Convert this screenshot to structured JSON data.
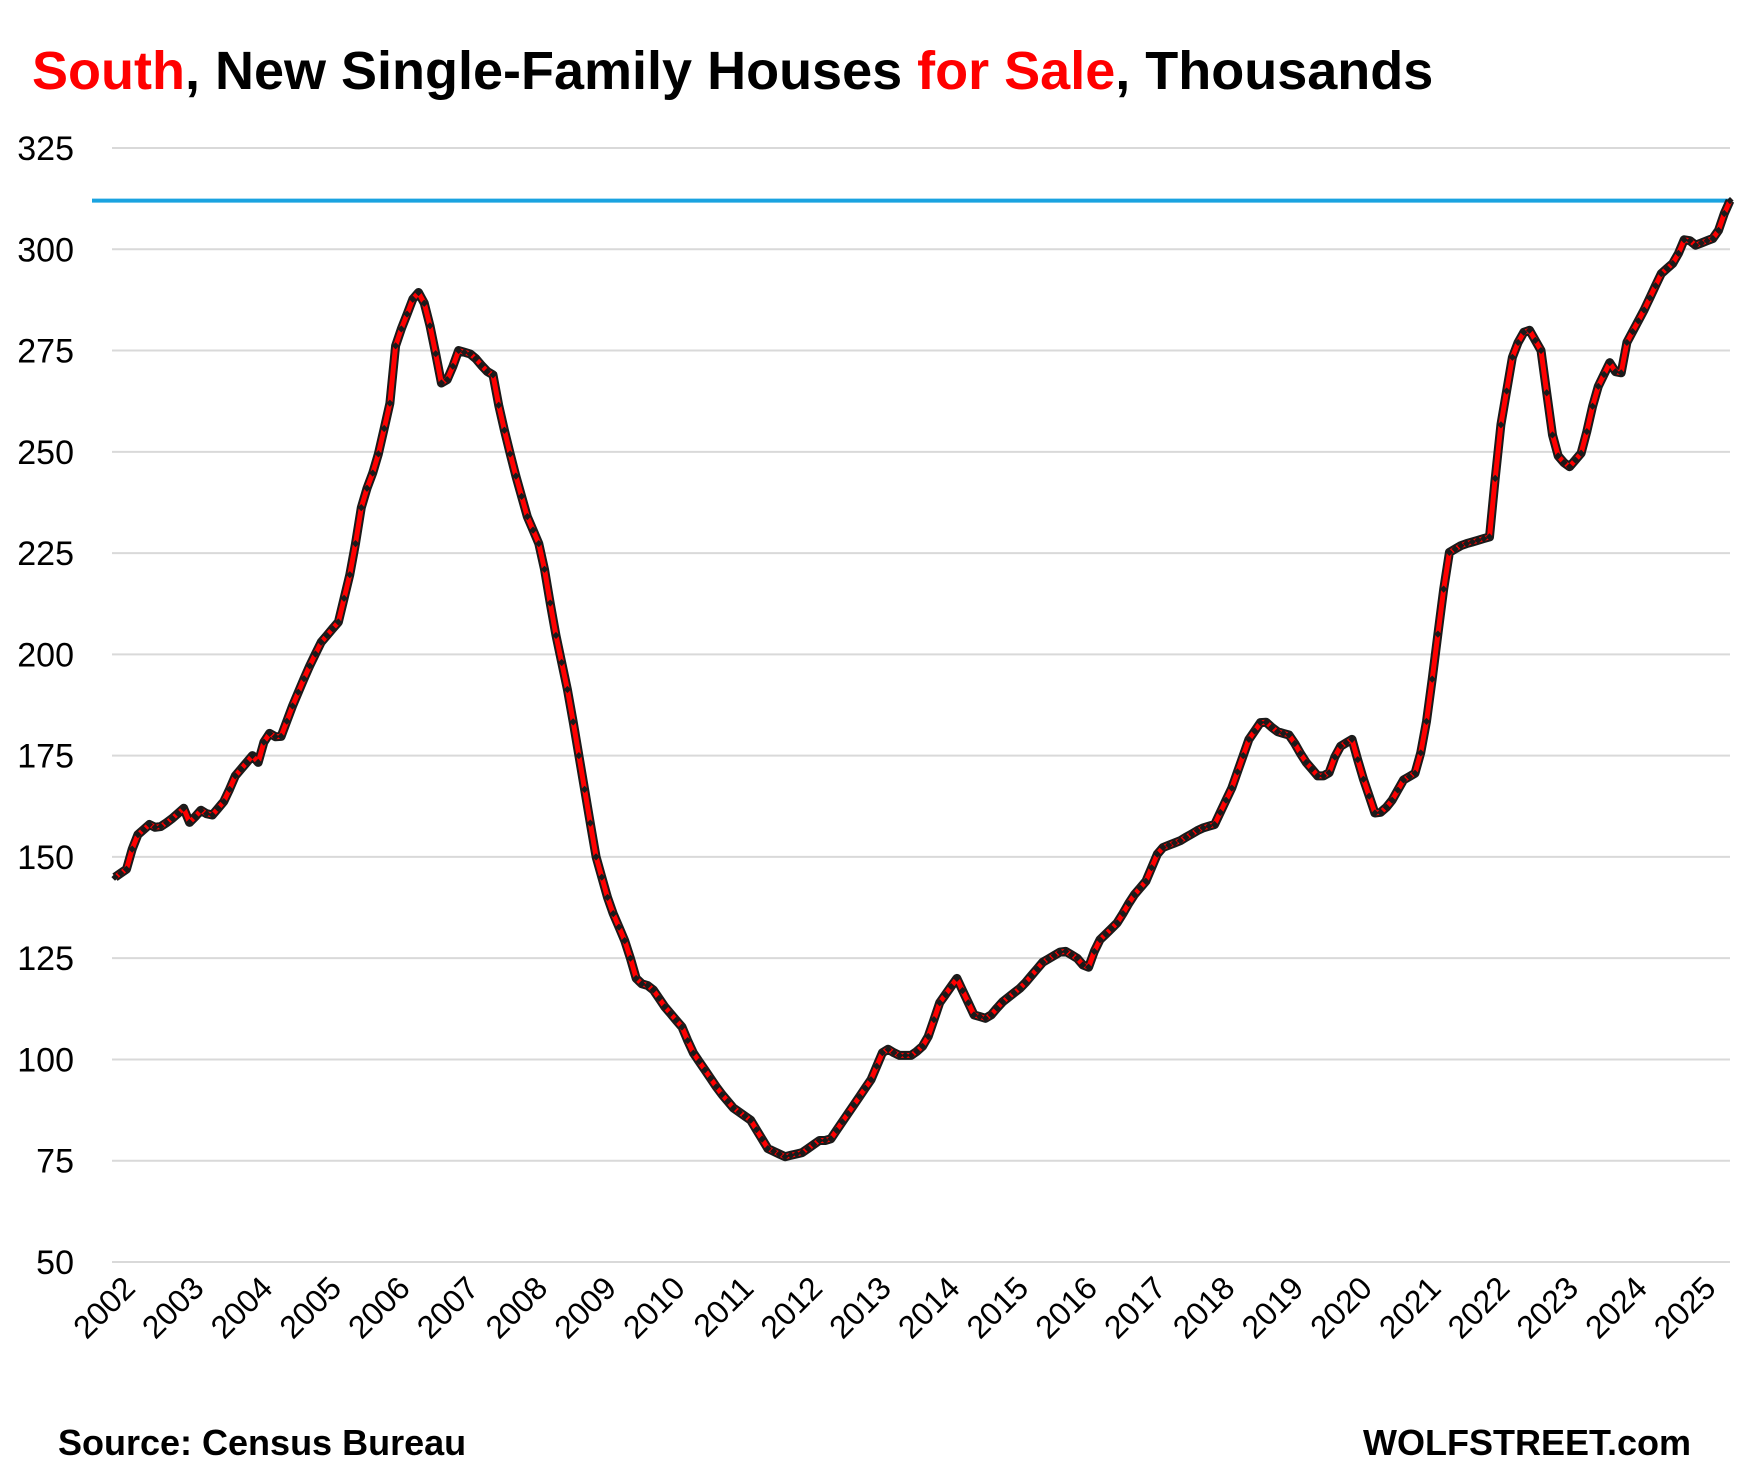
{
  "title": {
    "part1": "South",
    "part2": ", New Single-Family Houses ",
    "part3": "for Sale",
    "part4": ", Thousands"
  },
  "footer": {
    "source": "Source: Census Bureau",
    "brand": "WOLFSTREET.com"
  },
  "colors": {
    "line": "#ff0000",
    "marker": "#1a1a1a",
    "reference_line": "#1aa3e0",
    "grid": "#d9d9d9",
    "title_highlight": "#ff0000"
  },
  "chart_data": {
    "type": "line",
    "ylim": [
      50,
      325
    ],
    "yticks": [
      50,
      75,
      100,
      125,
      150,
      175,
      200,
      225,
      250,
      275,
      300,
      325
    ],
    "xlim": [
      2002.0,
      2025.5
    ],
    "xticks": [
      2002,
      2003,
      2004,
      2005,
      2006,
      2007,
      2008,
      2009,
      2010,
      2011,
      2012,
      2013,
      2014,
      2015,
      2016,
      2017,
      2018,
      2019,
      2020,
      2021,
      2022,
      2023,
      2024,
      2025
    ],
    "grid": true,
    "legend": "none",
    "reference_line": 312,
    "anchors": [
      [
        2002.0,
        145
      ],
      [
        2002.17,
        147
      ],
      [
        2002.3,
        155
      ],
      [
        2002.5,
        158
      ],
      [
        2002.62,
        157
      ],
      [
        2002.8,
        159
      ],
      [
        2003.0,
        162
      ],
      [
        2003.12,
        157
      ],
      [
        2003.2,
        162
      ],
      [
        2003.4,
        160
      ],
      [
        2003.6,
        164
      ],
      [
        2003.75,
        170
      ],
      [
        2004.0,
        175
      ],
      [
        2004.1,
        173
      ],
      [
        2004.2,
        181
      ],
      [
        2004.4,
        179
      ],
      [
        2004.6,
        188
      ],
      [
        2004.8,
        196
      ],
      [
        2005.0,
        203
      ],
      [
        2005.25,
        208
      ],
      [
        2005.45,
        222
      ],
      [
        2005.6,
        238
      ],
      [
        2005.8,
        247
      ],
      [
        2006.0,
        262
      ],
      [
        2006.1,
        279
      ],
      [
        2006.2,
        281
      ],
      [
        2006.3,
        287
      ],
      [
        2006.45,
        290
      ],
      [
        2006.6,
        280
      ],
      [
        2006.75,
        267
      ],
      [
        2006.85,
        268
      ],
      [
        2007.0,
        275
      ],
      [
        2007.2,
        274
      ],
      [
        2007.4,
        270
      ],
      [
        2007.5,
        269
      ],
      [
        2007.6,
        260
      ],
      [
        2007.8,
        246
      ],
      [
        2008.0,
        234
      ],
      [
        2008.2,
        226
      ],
      [
        2008.4,
        206
      ],
      [
        2008.6,
        190
      ],
      [
        2008.8,
        170
      ],
      [
        2009.0,
        150
      ],
      [
        2009.2,
        138
      ],
      [
        2009.45,
        128
      ],
      [
        2009.6,
        119
      ],
      [
        2009.8,
        118
      ],
      [
        2010.0,
        113
      ],
      [
        2010.25,
        108
      ],
      [
        2010.4,
        102
      ],
      [
        2010.6,
        97
      ],
      [
        2010.8,
        92
      ],
      [
        2011.0,
        88
      ],
      [
        2011.25,
        85
      ],
      [
        2011.5,
        78
      ],
      [
        2011.75,
        76
      ],
      [
        2012.0,
        77
      ],
      [
        2012.25,
        80
      ],
      [
        2012.4,
        80
      ],
      [
        2012.6,
        85
      ],
      [
        2012.8,
        90
      ],
      [
        2013.0,
        95
      ],
      [
        2013.2,
        103
      ],
      [
        2013.4,
        101
      ],
      [
        2013.6,
        101
      ],
      [
        2013.8,
        104
      ],
      [
        2014.0,
        114
      ],
      [
        2014.25,
        120
      ],
      [
        2014.5,
        111
      ],
      [
        2014.7,
        110
      ],
      [
        2014.9,
        114
      ],
      [
        2015.2,
        118
      ],
      [
        2015.5,
        124
      ],
      [
        2015.8,
        127
      ],
      [
        2016.0,
        125
      ],
      [
        2016.15,
        122
      ],
      [
        2016.3,
        129
      ],
      [
        2016.6,
        134
      ],
      [
        2016.8,
        140
      ],
      [
        2017.0,
        144
      ],
      [
        2017.2,
        152
      ],
      [
        2017.5,
        154
      ],
      [
        2017.8,
        157
      ],
      [
        2018.0,
        158
      ],
      [
        2018.25,
        167
      ],
      [
        2018.5,
        179
      ],
      [
        2018.7,
        184
      ],
      [
        2018.9,
        181
      ],
      [
        2019.1,
        180
      ],
      [
        2019.3,
        174
      ],
      [
        2019.5,
        170
      ],
      [
        2019.65,
        170
      ],
      [
        2019.8,
        177
      ],
      [
        2020.0,
        179
      ],
      [
        2020.15,
        170
      ],
      [
        2020.35,
        160
      ],
      [
        2020.55,
        163
      ],
      [
        2020.75,
        169
      ],
      [
        2020.95,
        171
      ],
      [
        2021.1,
        185
      ],
      [
        2021.25,
        205
      ],
      [
        2021.4,
        225
      ],
      [
        2021.6,
        227
      ],
      [
        2021.8,
        228
      ],
      [
        2022.0,
        229
      ],
      [
        2022.15,
        255
      ],
      [
        2022.35,
        275
      ],
      [
        2022.55,
        281
      ],
      [
        2022.75,
        275
      ],
      [
        2022.95,
        250
      ],
      [
        2023.15,
        246
      ],
      [
        2023.35,
        250
      ],
      [
        2023.55,
        265
      ],
      [
        2023.75,
        272
      ],
      [
        2023.9,
        268
      ],
      [
        2024.0,
        277
      ],
      [
        2024.25,
        285
      ],
      [
        2024.5,
        294
      ],
      [
        2024.7,
        297
      ],
      [
        2024.85,
        303
      ],
      [
        2025.0,
        301
      ],
      [
        2025.15,
        302
      ],
      [
        2025.3,
        303
      ],
      [
        2025.42,
        309
      ],
      [
        2025.5,
        312
      ]
    ]
  }
}
